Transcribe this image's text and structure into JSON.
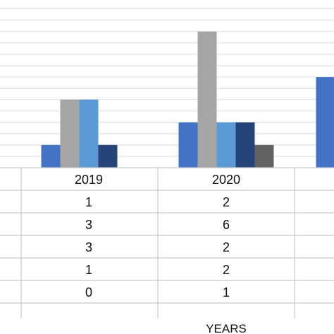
{
  "chart_data": {
    "type": "bar",
    "categories": [
      "2019",
      "2020",
      ""
    ],
    "series": [
      {
        "values": [
          1,
          2,
          4
        ],
        "color": "#4472C4"
      },
      {
        "values": [
          3,
          6,
          null
        ],
        "color": "#A5A5A5"
      },
      {
        "values": [
          3,
          2,
          null
        ],
        "color": "#5B9BD5"
      },
      {
        "values": [
          1,
          2,
          null
        ],
        "color": "#264478"
      },
      {
        "values": [
          0,
          1,
          null
        ],
        "color": "#636363"
      }
    ],
    "table_rows": [
      [
        "1",
        "2"
      ],
      [
        "3",
        "6"
      ],
      [
        "3",
        "2"
      ],
      [
        "1",
        "2"
      ],
      [
        "0",
        "1"
      ]
    ],
    "xlabel": "YEARS",
    "ylim": [
      0,
      7
    ],
    "grid": true,
    "legend": "none"
  }
}
